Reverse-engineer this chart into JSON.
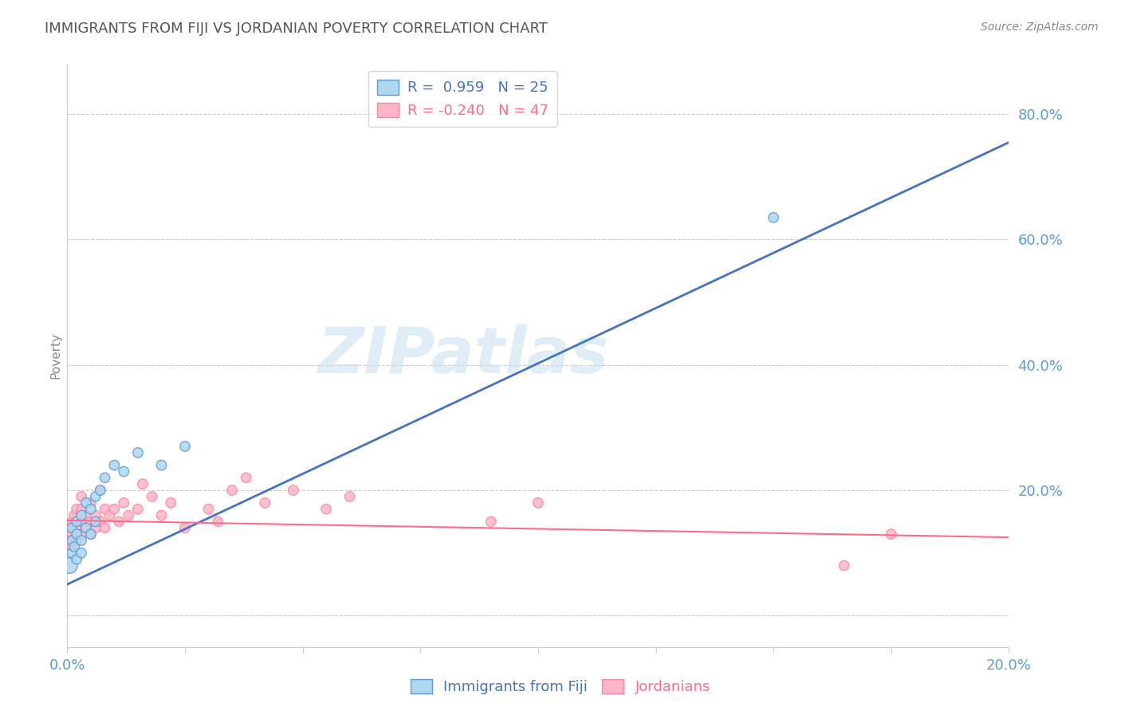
{
  "title": "IMMIGRANTS FROM FIJI VS JORDANIAN POVERTY CORRELATION CHART",
  "source_text": "Source: ZipAtlas.com",
  "ylabel": "Poverty",
  "xlim": [
    0.0,
    0.2
  ],
  "ylim": [
    -0.05,
    0.88
  ],
  "yticks": [
    0.0,
    0.2,
    0.4,
    0.6,
    0.8
  ],
  "xticks": [
    0.0,
    0.025,
    0.05,
    0.075,
    0.1,
    0.125,
    0.15,
    0.175,
    0.2
  ],
  "xtick_labels": [
    "0.0%",
    "",
    "",
    "",
    "",
    "",
    "",
    "",
    "20.0%"
  ],
  "ytick_labels": [
    "",
    "20.0%",
    "40.0%",
    "60.0%",
    "80.0%"
  ],
  "blue_color": "#ADD8F0",
  "blue_edge": "#5B9BD5",
  "blue_line_color": "#4472C4",
  "pink_color": "#FFB6C8",
  "pink_edge": "#FF85A0",
  "pink_line_color": "#FF6B8A",
  "blue_label": "Immigrants from Fiji",
  "pink_label": "Jordanians",
  "blue_R": 0.959,
  "blue_N": 25,
  "pink_R": -0.24,
  "pink_N": 47,
  "watermark": "ZIPatlas",
  "background_color": "#FFFFFF",
  "grid_color": "#CCCCCC",
  "title_color": "#555555",
  "axis_color": "#5B9BD5",
  "blue_line_y0": 0.05,
  "blue_line_y1": 0.755,
  "pink_line_y0": 0.152,
  "pink_line_y1": 0.125,
  "blue_scatter_x": [
    0.0005,
    0.001,
    0.001,
    0.001,
    0.0015,
    0.002,
    0.002,
    0.002,
    0.003,
    0.003,
    0.003,
    0.004,
    0.004,
    0.005,
    0.005,
    0.006,
    0.006,
    0.007,
    0.008,
    0.01,
    0.012,
    0.015,
    0.02,
    0.025,
    0.15
  ],
  "blue_scatter_y": [
    0.08,
    0.1,
    0.12,
    0.14,
    0.11,
    0.13,
    0.15,
    0.09,
    0.12,
    0.16,
    0.1,
    0.14,
    0.18,
    0.13,
    0.17,
    0.15,
    0.19,
    0.2,
    0.22,
    0.24,
    0.23,
    0.26,
    0.24,
    0.27,
    0.635
  ],
  "blue_scatter_sizes": [
    200,
    80,
    80,
    80,
    80,
    80,
    80,
    80,
    80,
    80,
    80,
    80,
    80,
    80,
    80,
    80,
    80,
    80,
    80,
    80,
    80,
    80,
    80,
    80,
    80
  ],
  "pink_scatter_x": [
    0.0003,
    0.0005,
    0.001,
    0.001,
    0.001,
    0.0015,
    0.002,
    0.002,
    0.002,
    0.003,
    0.003,
    0.003,
    0.003,
    0.004,
    0.004,
    0.005,
    0.005,
    0.005,
    0.006,
    0.006,
    0.007,
    0.007,
    0.008,
    0.008,
    0.009,
    0.01,
    0.011,
    0.012,
    0.013,
    0.015,
    0.016,
    0.018,
    0.02,
    0.022,
    0.025,
    0.03,
    0.032,
    0.035,
    0.038,
    0.042,
    0.048,
    0.055,
    0.06,
    0.09,
    0.1,
    0.165,
    0.175
  ],
  "pink_scatter_y": [
    0.12,
    0.14,
    0.13,
    0.15,
    0.11,
    0.16,
    0.14,
    0.17,
    0.12,
    0.15,
    0.13,
    0.17,
    0.19,
    0.14,
    0.16,
    0.13,
    0.15,
    0.18,
    0.14,
    0.16,
    0.15,
    0.2,
    0.14,
    0.17,
    0.16,
    0.17,
    0.15,
    0.18,
    0.16,
    0.17,
    0.21,
    0.19,
    0.16,
    0.18,
    0.14,
    0.17,
    0.15,
    0.2,
    0.22,
    0.18,
    0.2,
    0.17,
    0.19,
    0.15,
    0.18,
    0.08,
    0.13
  ],
  "pink_scatter_sizes": [
    280,
    120,
    80,
    80,
    80,
    80,
    80,
    80,
    80,
    80,
    80,
    80,
    80,
    80,
    80,
    80,
    80,
    80,
    80,
    80,
    80,
    80,
    80,
    80,
    80,
    80,
    80,
    80,
    80,
    80,
    80,
    80,
    80,
    80,
    80,
    80,
    80,
    80,
    80,
    80,
    80,
    80,
    80,
    80,
    80,
    80,
    80
  ]
}
